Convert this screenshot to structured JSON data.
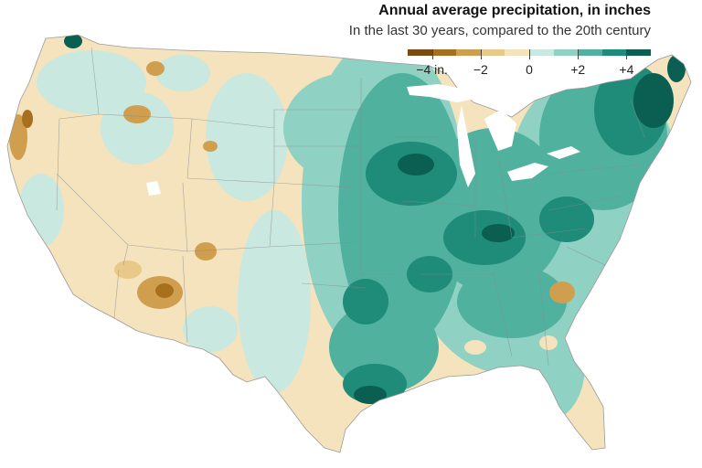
{
  "header": {
    "title": "Annual average precipitation, in inches",
    "subtitle": "In the last 30 years, compared to the 20th century"
  },
  "legend": {
    "ticks": [
      {
        "label": "−4 in.",
        "value": -4
      },
      {
        "label": "−2",
        "value": -2
      },
      {
        "label": "0",
        "value": 0
      },
      {
        "label": "+2",
        "value": 2
      },
      {
        "label": "+4",
        "value": 4
      }
    ],
    "bins": [
      {
        "from": -5,
        "to": -4,
        "color": "#7a4a0e"
      },
      {
        "from": -4,
        "to": -3,
        "color": "#a8701e"
      },
      {
        "from": -3,
        "to": -2,
        "color": "#cf9e4e"
      },
      {
        "from": -2,
        "to": -1,
        "color": "#e8c98a"
      },
      {
        "from": -1,
        "to": 0,
        "color": "#f4e3bd"
      },
      {
        "from": 0,
        "to": 1,
        "color": "#c9e8e0"
      },
      {
        "from": 1,
        "to": 2,
        "color": "#8fd1c3"
      },
      {
        "from": 2,
        "to": 3,
        "color": "#4fb19e"
      },
      {
        "from": 3,
        "to": 4,
        "color": "#1f8b79"
      },
      {
        "from": 4,
        "to": 5,
        "color": "#0b5f52"
      }
    ]
  },
  "map": {
    "region": "Contiguous United States",
    "land_color": "#f4e3bd",
    "border_color": "#8c8c8c",
    "lake_color": "#ffffff"
  }
}
